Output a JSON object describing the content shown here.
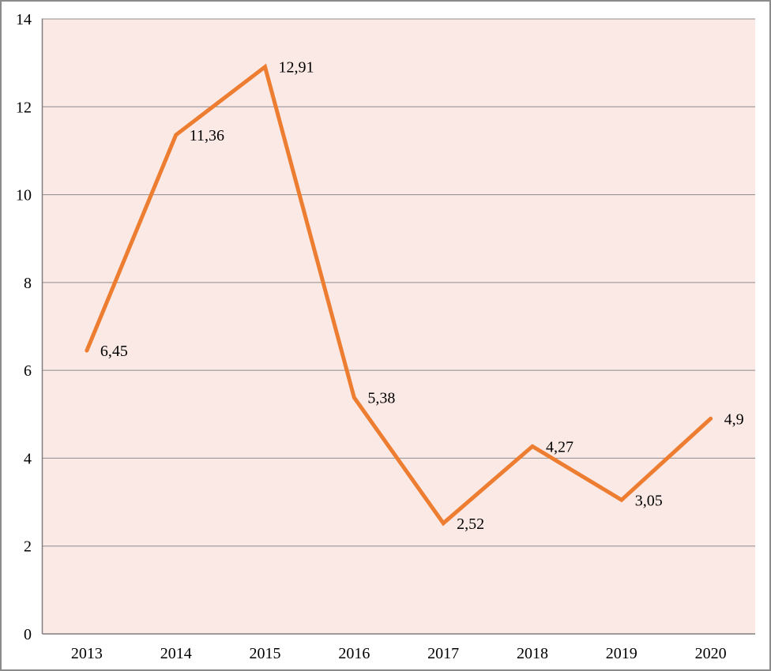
{
  "chart_data": {
    "type": "line",
    "categories": [
      "2013",
      "2014",
      "2015",
      "2016",
      "2017",
      "2018",
      "2019",
      "2020"
    ],
    "values": [
      6.45,
      11.36,
      12.91,
      5.38,
      2.52,
      4.27,
      3.05,
      4.9
    ],
    "point_labels": [
      "6,45",
      "11,36",
      "12,91",
      "5,38",
      "2,52",
      "4,27",
      "3,05",
      "4,9"
    ],
    "title": "",
    "xlabel": "",
    "ylabel": "",
    "ylim": [
      0,
      14
    ],
    "ytick_labels": [
      "0",
      "2",
      "4",
      "6",
      "8",
      "10",
      "12",
      "14"
    ],
    "grid": "horizontal",
    "legend": "none",
    "colors": {
      "line": "#ED7D31",
      "plot_background": "#FBE9E5",
      "gridline": "#8C8C8C",
      "axis_line": "#7F7F7F",
      "label_text": "#000000",
      "frame": "#8A8A8A"
    }
  }
}
